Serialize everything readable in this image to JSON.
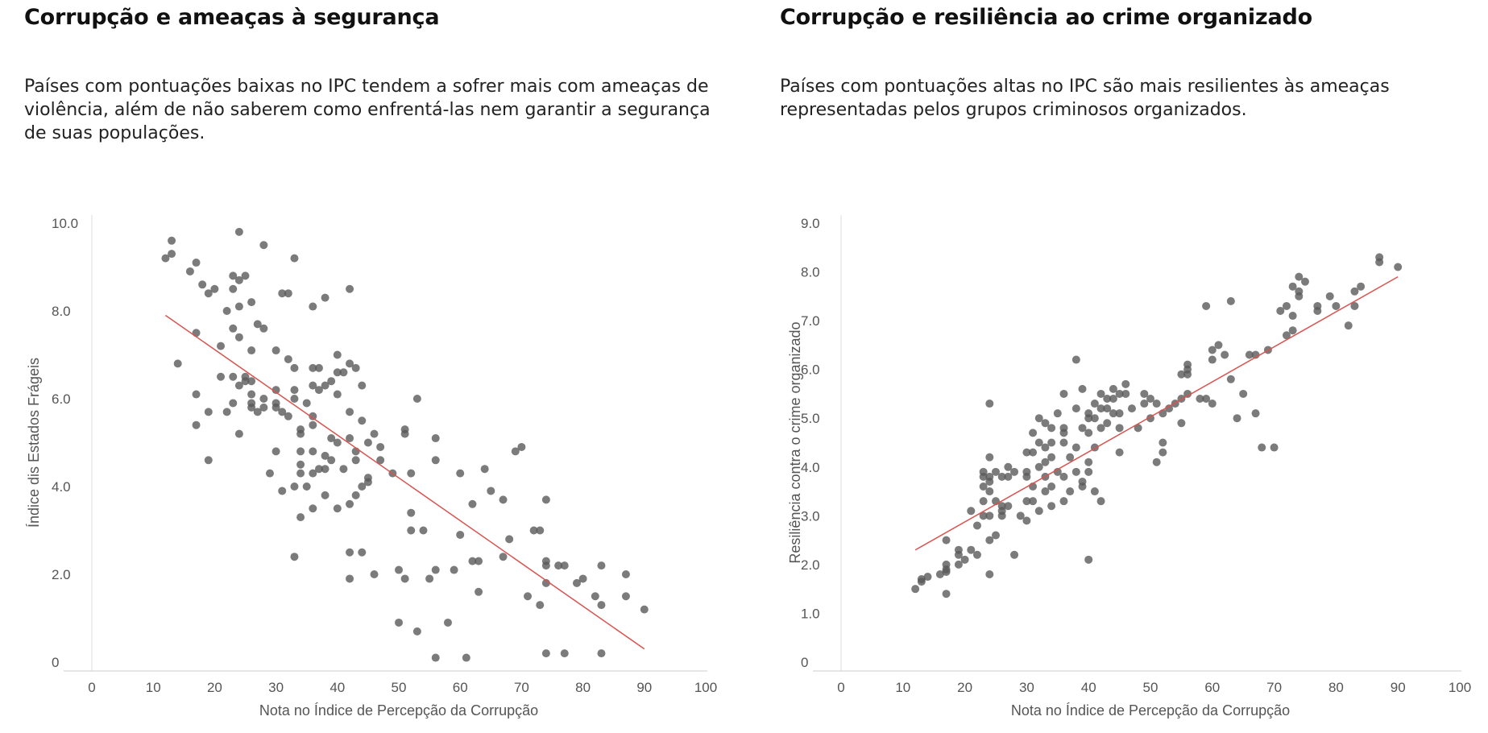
{
  "chart_data": [
    {
      "type": "scatter",
      "title": "Corrupção e ameaças à segurança",
      "subtitle": "Países com pontuações baixas no IPC tendem a sofrer mais com ameaças de violência, além de não saberem como enfrentá-las nem garantir a segurança de suas populações.",
      "xlabel": "Nota no Índice de Percepção da Corrupção",
      "ylabel": "Índice dis Estados Frágeis",
      "xlim": [
        0,
        100
      ],
      "ylim": [
        0,
        10
      ],
      "x_ticks": [
        "0",
        "10",
        "20",
        "30",
        "40",
        "50",
        "60",
        "70",
        "80",
        "90",
        "100"
      ],
      "y_ticks": [
        "0",
        "2.0",
        "4.0",
        "6.0",
        "8.0",
        "10.0"
      ],
      "grid": false,
      "point_color": "#5a5a5a",
      "trend_color": "#d9534f",
      "trendline": [
        [
          12,
          7.9
        ],
        [
          90,
          0.3
        ]
      ],
      "points": [
        [
          12,
          9.2
        ],
        [
          13,
          9.3
        ],
        [
          13,
          9.6
        ],
        [
          14,
          6.8
        ],
        [
          16,
          8.9
        ],
        [
          17,
          9.1
        ],
        [
          17,
          7.5
        ],
        [
          17,
          6.1
        ],
        [
          17,
          5.4
        ],
        [
          18,
          8.6
        ],
        [
          19,
          8.4
        ],
        [
          19,
          5.7
        ],
        [
          19,
          4.6
        ],
        [
          20,
          8.5
        ],
        [
          21,
          7.2
        ],
        [
          21,
          6.5
        ],
        [
          22,
          8.0
        ],
        [
          22,
          5.7
        ],
        [
          23,
          8.8
        ],
        [
          23,
          8.5
        ],
        [
          23,
          7.6
        ],
        [
          23,
          6.5
        ],
        [
          23,
          5.9
        ],
        [
          24,
          9.8
        ],
        [
          24,
          8.7
        ],
        [
          24,
          8.1
        ],
        [
          24,
          7.4
        ],
        [
          24,
          6.3
        ],
        [
          24,
          5.2
        ],
        [
          25,
          8.8
        ],
        [
          25,
          6.5
        ],
        [
          25,
          6.4
        ],
        [
          26,
          8.2
        ],
        [
          26,
          7.1
        ],
        [
          26,
          6.4
        ],
        [
          26,
          6.1
        ],
        [
          26,
          5.8
        ],
        [
          26,
          5.9
        ],
        [
          27,
          7.7
        ],
        [
          27,
          5.7
        ],
        [
          28,
          9.5
        ],
        [
          28,
          7.6
        ],
        [
          28,
          6.0
        ],
        [
          28,
          5.8
        ],
        [
          29,
          4.3
        ],
        [
          30,
          7.1
        ],
        [
          30,
          6.2
        ],
        [
          30,
          5.9
        ],
        [
          30,
          5.8
        ],
        [
          30,
          4.8
        ],
        [
          31,
          8.4
        ],
        [
          31,
          5.7
        ],
        [
          31,
          3.9
        ],
        [
          32,
          8.4
        ],
        [
          32,
          6.9
        ],
        [
          32,
          5.6
        ],
        [
          33,
          9.2
        ],
        [
          33,
          6.7
        ],
        [
          33,
          6.2
        ],
        [
          33,
          6.0
        ],
        [
          33,
          4.0
        ],
        [
          33,
          2.4
        ],
        [
          34,
          5.3
        ],
        [
          34,
          5.2
        ],
        [
          34,
          4.8
        ],
        [
          34,
          4.5
        ],
        [
          34,
          4.3
        ],
        [
          34,
          3.3
        ],
        [
          35,
          4.0
        ],
        [
          35,
          5.9
        ],
        [
          36,
          8.1
        ],
        [
          36,
          6.7
        ],
        [
          36,
          6.3
        ],
        [
          36,
          5.6
        ],
        [
          36,
          5.4
        ],
        [
          36,
          4.8
        ],
        [
          36,
          4.3
        ],
        [
          36,
          3.5
        ],
        [
          37,
          6.7
        ],
        [
          37,
          6.2
        ],
        [
          37,
          4.4
        ],
        [
          38,
          8.3
        ],
        [
          38,
          6.3
        ],
        [
          38,
          4.7
        ],
        [
          38,
          4.4
        ],
        [
          38,
          3.8
        ],
        [
          39,
          6.4
        ],
        [
          39,
          5.1
        ],
        [
          39,
          4.6
        ],
        [
          40,
          7.0
        ],
        [
          40,
          6.6
        ],
        [
          40,
          6.1
        ],
        [
          40,
          5.0
        ],
        [
          40,
          3.5
        ],
        [
          41,
          6.6
        ],
        [
          41,
          4.4
        ],
        [
          42,
          6.8
        ],
        [
          42,
          5.7
        ],
        [
          42,
          5.1
        ],
        [
          42,
          3.6
        ],
        [
          42,
          2.5
        ],
        [
          42,
          1.9
        ],
        [
          42,
          8.5
        ],
        [
          43,
          6.7
        ],
        [
          43,
          4.8
        ],
        [
          43,
          4.6
        ],
        [
          43,
          3.8
        ],
        [
          44,
          5.5
        ],
        [
          44,
          4.0
        ],
        [
          44,
          2.5
        ],
        [
          44,
          6.3
        ],
        [
          45,
          5.0
        ],
        [
          45,
          4.2
        ],
        [
          45,
          4.1
        ],
        [
          46,
          5.2
        ],
        [
          46,
          2.0
        ],
        [
          47,
          4.9
        ],
        [
          47,
          4.6
        ],
        [
          49,
          4.3
        ],
        [
          50,
          2.1
        ],
        [
          50,
          0.9
        ],
        [
          51,
          5.3
        ],
        [
          51,
          5.2
        ],
        [
          51,
          1.9
        ],
        [
          52,
          4.3
        ],
        [
          52,
          3.4
        ],
        [
          52,
          3.0
        ],
        [
          53,
          6.0
        ],
        [
          53,
          0.7
        ],
        [
          54,
          3.0
        ],
        [
          55,
          1.9
        ],
        [
          56,
          5.1
        ],
        [
          56,
          4.6
        ],
        [
          56,
          2.1
        ],
        [
          56,
          0.1
        ],
        [
          58,
          0.9
        ],
        [
          59,
          2.1
        ],
        [
          60,
          4.3
        ],
        [
          60,
          2.9
        ],
        [
          61,
          0.1
        ],
        [
          62,
          2.3
        ],
        [
          62,
          3.6
        ],
        [
          63,
          2.3
        ],
        [
          63,
          1.6
        ],
        [
          64,
          4.4
        ],
        [
          65,
          3.9
        ],
        [
          67,
          3.7
        ],
        [
          67,
          2.4
        ],
        [
          68,
          2.8
        ],
        [
          69,
          4.8
        ],
        [
          70,
          4.9
        ],
        [
          71,
          1.5
        ],
        [
          72,
          3.0
        ],
        [
          73,
          3.0
        ],
        [
          73,
          1.3
        ],
        [
          74,
          3.7
        ],
        [
          74,
          2.2
        ],
        [
          74,
          2.3
        ],
        [
          74,
          1.8
        ],
        [
          74,
          0.2
        ],
        [
          76,
          2.2
        ],
        [
          77,
          2.2
        ],
        [
          77,
          0.2
        ],
        [
          79,
          1.8
        ],
        [
          80,
          1.9
        ],
        [
          82,
          1.5
        ],
        [
          83,
          2.2
        ],
        [
          83,
          1.3
        ],
        [
          83,
          0.2
        ],
        [
          87,
          2.0
        ],
        [
          87,
          1.5
        ],
        [
          90,
          1.2
        ]
      ]
    },
    {
      "type": "scatter",
      "title": "Corrupção e resiliência ao crime organizado",
      "subtitle": "Países com pontuações altas no IPC são mais resilientes às ameaças representadas pelos grupos criminosos organizados.",
      "xlabel": "Nota no Índice de Percepção da Corrupção",
      "ylabel": "Resiliência contra o crime organizado",
      "xlim": [
        0,
        100
      ],
      "ylim": [
        0,
        9
      ],
      "x_ticks": [
        "0",
        "10",
        "20",
        "30",
        "40",
        "50",
        "60",
        "70",
        "80",
        "90",
        "100"
      ],
      "y_ticks": [
        "0",
        "1.0",
        "2.0",
        "3.0",
        "4.0",
        "5.0",
        "6.0",
        "7.0",
        "8.0",
        "9.0"
      ],
      "grid": false,
      "point_color": "#5a5a5a",
      "trend_color": "#d9534f",
      "trendline": [
        [
          12,
          2.3
        ],
        [
          90,
          7.9
        ]
      ],
      "points": [
        [
          12,
          1.5
        ],
        [
          13,
          1.7
        ],
        [
          13,
          1.65
        ],
        [
          14,
          1.75
        ],
        [
          16,
          1.8
        ],
        [
          17,
          1.4
        ],
        [
          17,
          1.9
        ],
        [
          17,
          2.0
        ],
        [
          17,
          2.5
        ],
        [
          17,
          1.85
        ],
        [
          19,
          2.0
        ],
        [
          19,
          2.2
        ],
        [
          19,
          2.3
        ],
        [
          20,
          2.1
        ],
        [
          21,
          2.3
        ],
        [
          21,
          3.1
        ],
        [
          22,
          2.2
        ],
        [
          22,
          2.8
        ],
        [
          23,
          3.0
        ],
        [
          23,
          3.3
        ],
        [
          23,
          3.6
        ],
        [
          23,
          3.9
        ],
        [
          23,
          3.8
        ],
        [
          24,
          2.5
        ],
        [
          24,
          1.8
        ],
        [
          24,
          3.0
        ],
        [
          24,
          3.5
        ],
        [
          24,
          3.7
        ],
        [
          24,
          3.8
        ],
        [
          24,
          4.2
        ],
        [
          24,
          5.3
        ],
        [
          25,
          2.6
        ],
        [
          25,
          3.3
        ],
        [
          25,
          3.9
        ],
        [
          26,
          3.0
        ],
        [
          26,
          3.1
        ],
        [
          26,
          3.2
        ],
        [
          26,
          3.8
        ],
        [
          27,
          3.2
        ],
        [
          27,
          3.8
        ],
        [
          27,
          4.0
        ],
        [
          28,
          2.2
        ],
        [
          28,
          3.9
        ],
        [
          29,
          3.0
        ],
        [
          30,
          2.9
        ],
        [
          30,
          3.3
        ],
        [
          30,
          3.8
        ],
        [
          30,
          3.9
        ],
        [
          30,
          4.3
        ],
        [
          31,
          3.3
        ],
        [
          31,
          4.3
        ],
        [
          31,
          4.7
        ],
        [
          31,
          3.6
        ],
        [
          32,
          3.1
        ],
        [
          32,
          4.0
        ],
        [
          32,
          4.5
        ],
        [
          32,
          5.0
        ],
        [
          33,
          3.5
        ],
        [
          33,
          3.8
        ],
        [
          33,
          4.1
        ],
        [
          33,
          4.4
        ],
        [
          33,
          4.9
        ],
        [
          34,
          3.2
        ],
        [
          34,
          3.6
        ],
        [
          34,
          4.2
        ],
        [
          34,
          4.5
        ],
        [
          34,
          4.8
        ],
        [
          35,
          3.9
        ],
        [
          35,
          5.1
        ],
        [
          36,
          3.3
        ],
        [
          36,
          3.8
        ],
        [
          36,
          4.5
        ],
        [
          36,
          4.7
        ],
        [
          36,
          4.8
        ],
        [
          36,
          5.5
        ],
        [
          37,
          3.5
        ],
        [
          37,
          4.2
        ],
        [
          38,
          3.9
        ],
        [
          38,
          4.4
        ],
        [
          38,
          5.2
        ],
        [
          38,
          6.2
        ],
        [
          39,
          3.6
        ],
        [
          39,
          3.7
        ],
        [
          39,
          4.8
        ],
        [
          39,
          5.6
        ],
        [
          40,
          2.1
        ],
        [
          40,
          3.9
        ],
        [
          40,
          4.1
        ],
        [
          40,
          4.7
        ],
        [
          40,
          5.0
        ],
        [
          40,
          5.1
        ],
        [
          41,
          3.5
        ],
        [
          41,
          4.4
        ],
        [
          41,
          5.0
        ],
        [
          41,
          5.3
        ],
        [
          42,
          3.3
        ],
        [
          42,
          4.8
        ],
        [
          42,
          5.2
        ],
        [
          42,
          5.5
        ],
        [
          43,
          4.9
        ],
        [
          43,
          5.2
        ],
        [
          43,
          5.4
        ],
        [
          44,
          5.1
        ],
        [
          44,
          5.4
        ],
        [
          44,
          5.6
        ],
        [
          45,
          4.3
        ],
        [
          45,
          4.8
        ],
        [
          45,
          5.1
        ],
        [
          45,
          5.5
        ],
        [
          46,
          5.5
        ],
        [
          46,
          5.7
        ],
        [
          47,
          5.2
        ],
        [
          48,
          4.8
        ],
        [
          49,
          5.3
        ],
        [
          49,
          5.5
        ],
        [
          50,
          5.0
        ],
        [
          50,
          5.4
        ],
        [
          51,
          4.1
        ],
        [
          51,
          5.3
        ],
        [
          52,
          4.3
        ],
        [
          52,
          4.5
        ],
        [
          52,
          5.1
        ],
        [
          53,
          5.2
        ],
        [
          54,
          5.3
        ],
        [
          55,
          4.9
        ],
        [
          55,
          5.4
        ],
        [
          55,
          5.9
        ],
        [
          56,
          5.5
        ],
        [
          56,
          5.9
        ],
        [
          56,
          6.0
        ],
        [
          56,
          6.1
        ],
        [
          58,
          5.4
        ],
        [
          59,
          5.4
        ],
        [
          59,
          7.3
        ],
        [
          60,
          5.3
        ],
        [
          60,
          6.2
        ],
        [
          60,
          6.4
        ],
        [
          61,
          6.5
        ],
        [
          62,
          6.3
        ],
        [
          63,
          5.8
        ],
        [
          63,
          7.4
        ],
        [
          64,
          5.0
        ],
        [
          65,
          5.5
        ],
        [
          66,
          6.3
        ],
        [
          67,
          5.1
        ],
        [
          67,
          6.3
        ],
        [
          68,
          4.4
        ],
        [
          69,
          6.4
        ],
        [
          70,
          4.4
        ],
        [
          71,
          7.2
        ],
        [
          72,
          6.7
        ],
        [
          72,
          7.3
        ],
        [
          73,
          6.8
        ],
        [
          73,
          7.1
        ],
        [
          73,
          7.7
        ],
        [
          74,
          7.5
        ],
        [
          74,
          7.6
        ],
        [
          74,
          7.9
        ],
        [
          75,
          7.8
        ],
        [
          77,
          7.2
        ],
        [
          77,
          7.3
        ],
        [
          79,
          7.5
        ],
        [
          80,
          7.3
        ],
        [
          82,
          6.9
        ],
        [
          83,
          7.3
        ],
        [
          83,
          7.6
        ],
        [
          84,
          7.7
        ],
        [
          87,
          8.2
        ],
        [
          87,
          8.3
        ],
        [
          90,
          8.1
        ]
      ]
    }
  ]
}
